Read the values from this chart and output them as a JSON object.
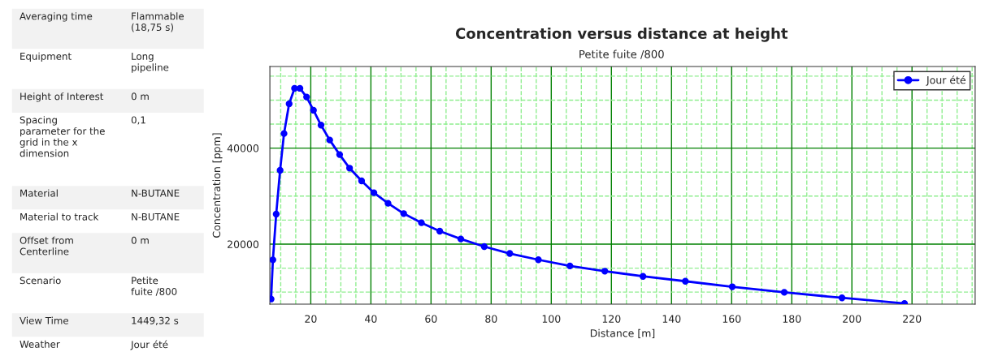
{
  "chart_data": [
    {
      "type": "other",
      "annotations": [
        "Averaging time",
        "Flammable\n(18,75 s)",
        "Equipment",
        "Long\npipeline",
        "Height of Interest",
        "0 m",
        "Spacing\nparameter for the\ngrid in the x\ndimension",
        "0,1",
        "Material",
        "N-BUTANE",
        "Material to track",
        "N-BUTANE",
        "Offset from\nCenterline",
        "0 m",
        "Scenario",
        "Petite\nfuite /800",
        "View Time",
        "1449,32 s",
        "Weather",
        "Jour été"
      ]
    },
    {
      "type": "line",
      "title": "Concentration versus distance at height",
      "subtitle": "Petite fuite /800",
      "xlabel": "Distance [m]",
      "ylabel": "Concentration [ppm]",
      "series": [
        {
          "name": "Jour été",
          "color": "#0000ff",
          "x": [
            6.8,
            7.4,
            8.5,
            9.8,
            11.1,
            12.8,
            14.6,
            16.4,
            18.6,
            20.9,
            23.4,
            26.3,
            29.6,
            32.9,
            36.9,
            41.0,
            45.7,
            50.9,
            56.8,
            62.9,
            69.9,
            77.7,
            86.2,
            95.7,
            106.2,
            117.8,
            130.5,
            144.6,
            160.2,
            177.5,
            196.7,
            217.5
          ],
          "values": [
            8560,
            16730,
            26250,
            35380,
            43040,
            49240,
            52450,
            52450,
            50650,
            47890,
            44790,
            41690,
            38650,
            35830,
            33180,
            30700,
            28510,
            26370,
            24450,
            22700,
            21080,
            19490,
            18050,
            16750,
            15450,
            14370,
            13290,
            12270,
            11120,
            9960,
            8810,
            7650
          ]
        }
      ],
      "xlim": [
        6.4,
        241
      ],
      "ylim": [
        7500,
        57000
      ],
      "xticks": [
        {
          "value": 10,
          "label": null
        },
        {
          "value": 15,
          "label": null
        },
        20,
        {
          "value": 25,
          "label": null
        },
        {
          "value": 30,
          "label": null
        },
        {
          "value": 35,
          "label": null
        },
        40,
        {
          "value": 45,
          "label": null
        },
        {
          "value": 50,
          "label": null
        },
        {
          "value": 55,
          "label": null
        },
        60,
        {
          "value": 65,
          "label": null
        },
        {
          "value": 70,
          "label": null
        },
        {
          "value": 75,
          "label": null
        },
        80,
        {
          "value": 85,
          "label": null
        },
        {
          "value": 90,
          "label": null
        },
        {
          "value": 95,
          "label": null
        },
        100,
        {
          "value": 105,
          "label": null
        },
        {
          "value": 110,
          "label": null
        },
        {
          "value": 115,
          "label": null
        },
        120,
        {
          "value": 125,
          "label": null
        },
        {
          "value": 130,
          "label": null
        },
        {
          "value": 135,
          "label": null
        },
        140,
        {
          "value": 145,
          "label": null
        },
        {
          "value": 150,
          "label": null
        },
        {
          "value": 155,
          "label": null
        },
        160,
        {
          "value": 165,
          "label": null
        },
        {
          "value": 170,
          "label": null
        },
        {
          "value": 175,
          "label": null
        },
        180,
        {
          "value": 185,
          "label": null
        },
        {
          "value": 190,
          "label": null
        },
        {
          "value": 195,
          "label": null
        },
        200,
        {
          "value": 205,
          "label": null
        },
        {
          "value": 210,
          "label": null
        },
        {
          "value": 215,
          "label": null
        },
        220,
        {
          "value": 225,
          "label": null
        },
        {
          "value": 230,
          "label": null
        },
        {
          "value": 235,
          "label": null
        },
        {
          "value": 240,
          "label": null
        }
      ],
      "yticks": [
        {
          "value": 10000,
          "label": null
        },
        {
          "value": 15000,
          "label": null
        },
        20000,
        {
          "value": 25000,
          "label": null
        },
        {
          "value": 30000,
          "label": null
        },
        {
          "value": 35000,
          "label": null
        },
        40000,
        {
          "value": 45000,
          "label": null
        },
        {
          "value": 50000,
          "label": null
        },
        {
          "value": 55000,
          "label": null
        }
      ],
      "grid": true,
      "legend": "top right",
      "marker": "circle",
      "line_style": "solid"
    }
  ]
}
